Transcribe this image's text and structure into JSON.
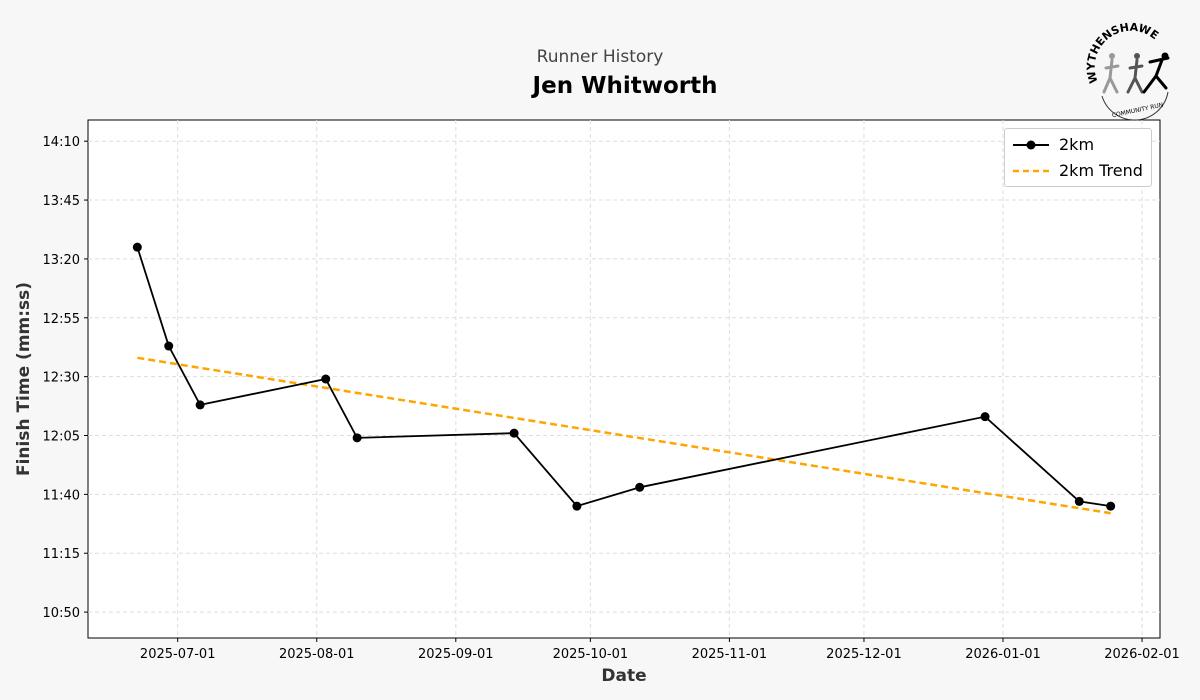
{
  "header": {
    "subtitle": "Runner History",
    "runner_name": "Jen Whitworth"
  },
  "logo": {
    "text": "WYTHENSHAWE",
    "subtext": "COMMUNITY RUN"
  },
  "chart_data": {
    "type": "line",
    "title": "Jen Whitworth",
    "subtitle": "Runner History",
    "xlabel": "Date",
    "ylabel": "Finish Time (mm:ss)",
    "xlim": [
      "2025-06-11",
      "2026-02-05"
    ],
    "ylim_seconds": [
      639,
      859
    ],
    "xticks": [
      "2025-07-01",
      "2025-08-01",
      "2025-09-01",
      "2025-10-01",
      "2025-11-01",
      "2025-12-01",
      "2026-01-01",
      "2026-02-01"
    ],
    "yticks": [
      {
        "label": "14:10",
        "seconds": 850
      },
      {
        "label": "13:45",
        "seconds": 825
      },
      {
        "label": "13:20",
        "seconds": 800
      },
      {
        "label": "12:55",
        "seconds": 775
      },
      {
        "label": "12:30",
        "seconds": 750
      },
      {
        "label": "12:05",
        "seconds": 725
      },
      {
        "label": "11:40",
        "seconds": 700
      },
      {
        "label": "11:15",
        "seconds": 675
      },
      {
        "label": "10:50",
        "seconds": 650
      }
    ],
    "grid": true,
    "legend_position": "top-right",
    "series": [
      {
        "name": "2km",
        "color": "#000000",
        "style": "solid-markers",
        "x": [
          "2025-06-22",
          "2025-06-29",
          "2025-07-06",
          "2025-08-03",
          "2025-08-10",
          "2025-09-14",
          "2025-09-28",
          "2025-10-12",
          "2025-12-28",
          "2026-01-18",
          "2026-01-25"
        ],
        "y": [
          "13:25",
          "12:43",
          "12:18",
          "12:29",
          "12:04",
          "12:06",
          "11:35",
          "11:43",
          "12:13",
          "11:37",
          "11:35"
        ]
      },
      {
        "name": "2km Trend",
        "color": "#FFA500",
        "style": "dashed",
        "x": [
          "2025-06-22",
          "2026-01-25"
        ],
        "y": [
          "12:38",
          "11:32"
        ]
      }
    ]
  }
}
